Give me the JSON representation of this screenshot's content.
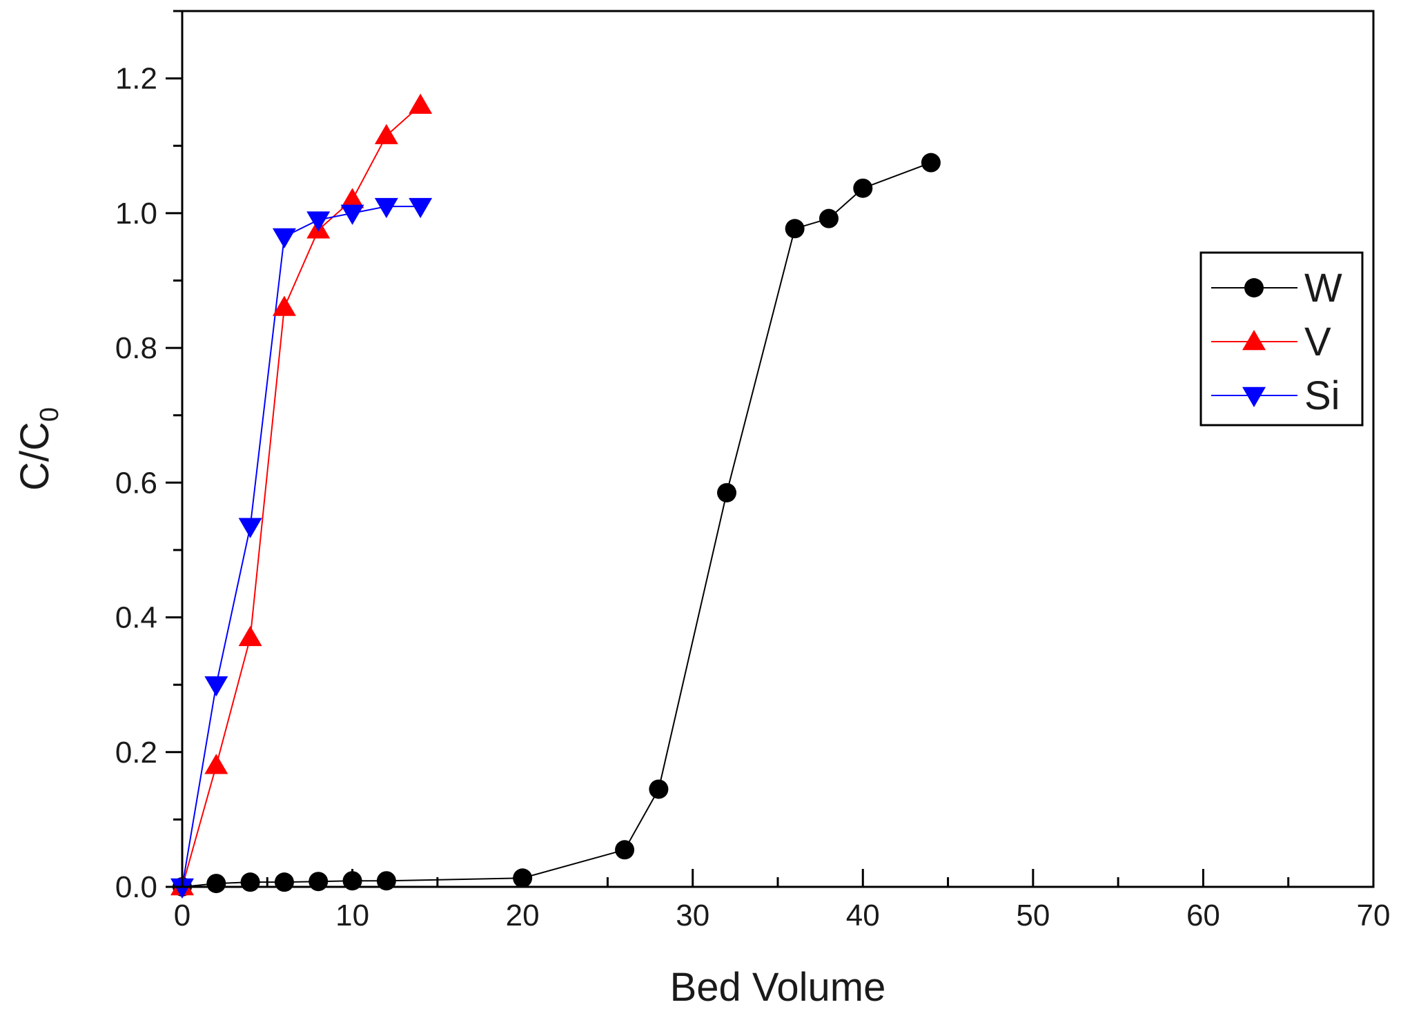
{
  "chart_data": {
    "type": "line",
    "title": "",
    "xlabel": "Bed Volume",
    "ylabel": "C/C",
    "ylabel_subscript": "0",
    "xlim": [
      0,
      70
    ],
    "ylim": [
      0,
      1.3
    ],
    "x_ticks": [
      0,
      10,
      20,
      30,
      40,
      50,
      60,
      70
    ],
    "x_tick_labels": [
      "0",
      "10",
      "20",
      "30",
      "40",
      "50",
      "60",
      "70"
    ],
    "y_ticks": [
      0,
      0.2,
      0.4,
      0.6,
      0.8,
      1.0,
      1.2
    ],
    "y_tick_labels": [
      "0.0",
      "0.2",
      "0.4",
      "0.6",
      "0.8",
      "1.0",
      "1.2"
    ],
    "grid": false,
    "legend_position": "right",
    "series": [
      {
        "name": "W",
        "color": "#000000",
        "marker": "circle",
        "x": [
          0,
          2,
          4,
          6,
          8,
          10,
          12,
          20,
          26,
          28,
          32,
          36,
          38,
          40,
          44
        ],
        "y": [
          0.0,
          0.005,
          0.007,
          0.007,
          0.008,
          0.009,
          0.009,
          0.013,
          0.055,
          0.145,
          0.585,
          0.977,
          0.992,
          1.037,
          1.075
        ]
      },
      {
        "name": "V",
        "color": "#ff0000",
        "marker": "triangle-up",
        "x": [
          0,
          2,
          4,
          6,
          8,
          10,
          12,
          14
        ],
        "y": [
          0.0,
          0.18,
          0.37,
          0.86,
          0.975,
          1.02,
          1.115,
          1.16
        ]
      },
      {
        "name": "Si",
        "color": "#0000ff",
        "marker": "triangle-down",
        "x": [
          0,
          2,
          4,
          6,
          8,
          10,
          12,
          14
        ],
        "y": [
          0.0,
          0.3,
          0.535,
          0.965,
          0.99,
          1.0,
          1.01,
          1.01
        ]
      }
    ]
  }
}
